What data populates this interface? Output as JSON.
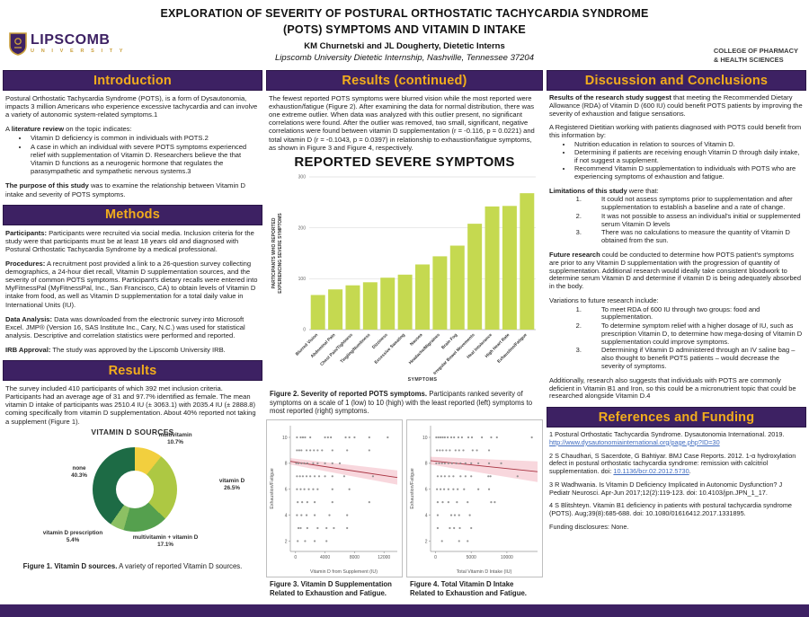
{
  "poster": {
    "title_line1": "EXPLORATION OF SEVERITY OF POSTURAL ORTHOSTATIC TACHYCARDIA SYNDROME",
    "title_line2": "(POTS) SYMPTOMS AND VITAMIN D INTAKE",
    "authors": "KM Churnetski and JL Dougherty, Dietetic Interns",
    "affiliation": "Lipscomb University Dietetic Internship, Nashville, Tennessee 37204",
    "college_line1": "COLLEGE OF PHARMACY",
    "college_line2": "& HEALTH SCIENCES",
    "logo_name": "LIPSCOMB",
    "logo_sub": "U N I V E R S I T Y"
  },
  "colors": {
    "purple": "#3d2163",
    "gold": "#f2ad1c",
    "bar_green": "#c5d950",
    "link_blue": "#3f6bbf",
    "trend_red": "#a83240"
  },
  "sections": {
    "introduction": {
      "title": "Introduction",
      "p1": "Postural Orthostatic Tachycardia Syndrome (POTS), is a form of Dysautonomia, impacts 3 million Americans who experience excessive tachycardia and can involve a variety of autonomic system-related symptoms.1",
      "lit_pre": "A ",
      "lit_bold": "literature review",
      "lit_post": " on the topic indicates:",
      "bullets": [
        "Vitamin D deficiency is common in individuals with POTS.2",
        "A case in which an individual with severe POTS symptoms experienced relief with supplementation of Vitamin D. Researchers believe the that Vitamin D functions as a neurogenic hormone that regulates the parasympathetic and sympathetic nervous systems.3"
      ],
      "purpose_bold": "The purpose of this study",
      "purpose_rest": " was to examine the relationship between Vitamin D intake and severity of POTS symptoms."
    },
    "methods": {
      "title": "Methods",
      "p1_bold": "Participants:",
      "p1_text": " Participants were recruited via social media. Inclusion criteria for the study were that participants must be at least 18 years old and diagnosed with Postural Orthostatic Tachycardia Syndrome by a medical professional.",
      "p2_bold": "Procedures:",
      "p2_text": " A recruitment post provided a link to a 26-question survey collecting demographics, a 24-hour diet recall, Vitamin D supplementation sources, and the severity of common POTS symptoms. Participant's dietary recalls were entered into MyFitnessPal (MyFitnessPal, Inc., San Francisco, CA) to obtain levels of Vitamin D intake from food, as well as Vitamin D supplementation for a total daily value in International Units (IU).",
      "p3_bold": "Data Analysis:",
      "p3_text": " Data was downloaded from the electronic survey into Microsoft Excel. JMP® (Version 16, SAS Institute Inc., Cary, N.C.) was used for statistical analysis. Descriptive and correlation statistics were performed and reported.",
      "p4_bold": "IRB Approval:",
      "p4_text": " The study was approved by the Lipscomb University IRB."
    },
    "results": {
      "title": "Results",
      "p1": "The survey included 410 participants of which 392 met inclusion criteria. Participants had an average age of 31 and 97.7% identified as female. The mean vitamin D intake of participants was 2510.4 IU (± 3063.1) with 2035.4 IU (± 2888.8) coming specifically from vitamin D supplementation. About 40% reported not taking a supplement (Figure 1).",
      "fig1_bold": "Figure 1. Vitamin D sources.",
      "fig1_rest": " A variety of reported Vitamin D sources."
    },
    "results_cont": {
      "title": "Results (continued)",
      "p1": "The fewest reported POTS symptoms were blurred vision while the most reported were exhaustion/fatigue (Figure 2). After examining the data for normal distribution, there was one extreme outlier. When data was analyzed with this outlier present, no significant correlations were found. After the outlier was removed, two small, significant, negative correlations were found between vitamin D supplementation (r = -0.116, p = 0.0221) and total vitamin D (r = -0.1043, p = 0.0397) in relationship to exhaustion/fatigue symptoms, as shown in Figure 3 and Figure 4, respectively.",
      "fig2_bold": "Figure 2. Severity of reported POTS symptoms.",
      "fig2_rest": " Participants ranked severity of symptoms on a scale of 1 (low) to 10 (high) with the least reported (left) symptoms to most reported (right) symptoms.",
      "fig3_caption": "Figure 3. Vitamin D Supplementation Related to Exhaustion and Fatigue.",
      "fig4_caption": "Figure 4. Total Vitamin D Intake Related to Exhaustion and Fatigue."
    },
    "discussion": {
      "title": "Discussion and Conclusions",
      "p1_bold": "Results of the research study suggest",
      "p1_text": " that meeting the Recommended Dietary Allowance (RDA) of Vitamin D (600 IU) could benefit POTS patients by improving the severity of exhaustion and fatigue sensations.",
      "p2_intro": "A Registered Dietitian working with patients diagnosed with POTS could benefit from this information by:",
      "p2_bullets": [
        "Nutrition education in relation to sources of Vitamin D.",
        "Determining if patients are receiving enough Vitamin D through daily intake, if not suggest a supplement.",
        "Recommend Vitamin D supplementation to individuals with POTS who are experiencing symptoms of exhaustion and fatigue."
      ],
      "lim_bold": "Limitations of this study",
      "lim_rest": " were that:",
      "lim_items": [
        "It could not assess symptoms prior to supplementation and after supplementation to establish a baseline and a rate of change.",
        "It was not possible to assess an individual's initial or supplemented serum Vitamin D levels",
        "There was no calculations to measure the quantity of Vitamin D obtained from the sun."
      ],
      "fut_bold": "Future research",
      "fut_rest": " could be conducted to determine how POTS patient's symptoms are prior to any Vitamin D supplementation with the progression of quantity of supplementation. Additional research would ideally take consistent bloodwork to determine serum Vitamin D and determine if vitamin D is being adequately absorbed in the body.",
      "var_intro": "Variations to future research include:",
      "var_items": [
        "To meet RDA of 600 IU through two groups: food and supplementation.",
        "To determine symptom relief with a higher dosage of IU, such as prescription Vitamin D, to determine how mega-dosing of Vitamin D supplementation could improve symptoms.",
        "Determining if Vitamin D administered through an IV saline bag – also thought to benefit POTS patients –  would decrease the severity of symptoms."
      ],
      "p_last": "Additionally, research also suggests that individuals with POTS are commonly deficient in Vitamin B1 and Iron, so this could be a micronutrient topic that could be researched alongside Vitamin D.4"
    },
    "references": {
      "title": "References and Funding",
      "r1_pre": "1 Postural Orthostatic Tachycardia Syndrome. Dysautonomia International. 2019.  ",
      "r1_link": "http://www.dysautonomiainternational.org/page.php?ID=30",
      "r1_post": "",
      "r2_pre": "2 S Chaudhari, S Sacerdote, G Bahtiyar. BMJ Case Reports. 2012. 1-α hydroxylation defect in postural orthostatic tachycardia syndrome: remission with calcitriol supplementation. doi: ",
      "r2_link": "10.1136/bcr.02.2012.5730",
      "r2_post": ".",
      "r3_text": "3 R Wadhwania. Is Vitamin D Deficiency Implicated in Autonomic Dysfunction? J Pediatr Neurosci. Apr-Jun 2017;12(2):119-123. doi: 10.4103/jpn.JPN_1_17.",
      "r4_text": "4 S Blitshteyn. Vitamin B1 deficiency in patients with postural tachycardia syndrome (POTS). Aug;39(8):685-688. doi: 10.1080/01616412.2017.1331895.",
      "funding": "Funding disclosures: None."
    }
  },
  "chart_data": [
    {
      "type": "pie",
      "title": "VITAMIN D SOURCES",
      "slices": [
        {
          "label": "multivitamin",
          "pct": 10.7,
          "pct_label": "10.7%",
          "color": "#f2cf3e"
        },
        {
          "label": "vitamin D",
          "pct": 26.5,
          "pct_label": "26.5%",
          "color": "#adc843"
        },
        {
          "label": "multivitamin + vitamin D",
          "pct": 17.1,
          "pct_label": "17.1%",
          "color": "#55a04e"
        },
        {
          "label": "vitamin D prescription",
          "pct": 5.4,
          "pct_label": "5.4%",
          "color": "#8cc063"
        },
        {
          "label": "none",
          "pct": 40.3,
          "pct_label": "40.3%",
          "color": "#1d6b45"
        }
      ]
    },
    {
      "type": "bar",
      "title": "REPORTED SEVERE SYMPTOMS",
      "xlabel": "SYMPTOMS",
      "ylabel_line1": "PARTICIPANTS WHO REPORTED",
      "ylabel_line2": "EXPERIENCING SEVERE SYMPTOMS",
      "ylim": [
        0,
        300
      ],
      "yticks": [
        0,
        100,
        200,
        300
      ],
      "bar_color": "#c5d950",
      "categories": [
        "Blurred Vision",
        "Abdominal Pain",
        "Chest Pain/Tightness",
        "Tingling/Numbness",
        "Dizziness",
        "Excessive Sweating",
        "Nausea",
        "Headache/Migraines",
        "Brain Fog",
        "Irregular Bowel Movements",
        "Heat Intolerance",
        "High Heart Rate",
        "Exhaustion/Fatigue"
      ],
      "values": [
        68,
        79,
        87,
        93,
        102,
        108,
        128,
        144,
        165,
        208,
        242,
        243,
        268
      ]
    },
    {
      "type": "scatter",
      "xlabel": "Vitamin D from Supplement (IU)",
      "ylabel": "Exhaustion/Fatigue",
      "xlim": [
        -700,
        13800
      ],
      "xticks": [
        0,
        4000,
        8000,
        12000
      ],
      "ylim": [
        1.2,
        10.9
      ],
      "yticks": [
        2,
        4,
        6,
        8,
        10
      ],
      "trend": {
        "x": [
          -700,
          13800
        ],
        "y": [
          8.15,
          6.9
        ],
        "band": [
          0.25,
          0.55
        ]
      },
      "points": [
        [
          200,
          10
        ],
        [
          700,
          10
        ],
        [
          1000,
          10
        ],
        [
          1300,
          10
        ],
        [
          2000,
          10
        ],
        [
          4000,
          10
        ],
        [
          4400,
          10
        ],
        [
          4800,
          10
        ],
        [
          6800,
          10
        ],
        [
          7300,
          10
        ],
        [
          8000,
          10
        ],
        [
          10000,
          10
        ],
        [
          12500,
          10
        ],
        [
          200,
          9
        ],
        [
          500,
          9
        ],
        [
          800,
          9
        ],
        [
          1500,
          9
        ],
        [
          2000,
          9
        ],
        [
          2500,
          9
        ],
        [
          3000,
          9
        ],
        [
          3600,
          9
        ],
        [
          5000,
          9
        ],
        [
          7000,
          9
        ],
        [
          10000,
          9
        ],
        [
          100,
          8
        ],
        [
          400,
          8
        ],
        [
          800,
          8
        ],
        [
          1200,
          8
        ],
        [
          1600,
          8
        ],
        [
          2400,
          8
        ],
        [
          3000,
          8
        ],
        [
          4000,
          8
        ],
        [
          5000,
          8
        ],
        [
          6000,
          8
        ],
        [
          200,
          7
        ],
        [
          600,
          7
        ],
        [
          1000,
          7
        ],
        [
          1500,
          7
        ],
        [
          2000,
          7
        ],
        [
          2600,
          7
        ],
        [
          3200,
          7
        ],
        [
          4000,
          7
        ],
        [
          5000,
          7
        ],
        [
          6600,
          7
        ],
        [
          10500,
          7
        ],
        [
          200,
          6
        ],
        [
          700,
          6
        ],
        [
          1200,
          6
        ],
        [
          1800,
          6
        ],
        [
          2400,
          6
        ],
        [
          3000,
          6
        ],
        [
          5000,
          6
        ],
        [
          7300,
          6
        ],
        [
          300,
          5
        ],
        [
          900,
          5
        ],
        [
          1600,
          5
        ],
        [
          2600,
          5
        ],
        [
          5000,
          5
        ],
        [
          10000,
          5
        ],
        [
          200,
          4
        ],
        [
          800,
          4
        ],
        [
          1500,
          4
        ],
        [
          2600,
          4
        ],
        [
          4600,
          4
        ],
        [
          7000,
          4
        ],
        [
          400,
          3
        ],
        [
          700,
          3
        ],
        [
          1600,
          3
        ],
        [
          3000,
          3
        ],
        [
          4200,
          3
        ],
        [
          5200,
          3
        ],
        [
          7000,
          3
        ],
        [
          300,
          2
        ],
        [
          1300,
          2
        ],
        [
          2600,
          2
        ],
        [
          4200,
          2
        ]
      ]
    },
    {
      "type": "scatter",
      "xlabel": "Total Vitamin D Intake (IU)",
      "ylabel": "Exhaustion/Fatigue",
      "xlim": [
        -700,
        14300
      ],
      "xticks": [
        0,
        5000,
        10000
      ],
      "ylim": [
        1.2,
        10.9
      ],
      "yticks": [
        2,
        4,
        6,
        8,
        10
      ],
      "trend": {
        "x": [
          -700,
          14300
        ],
        "y": [
          8.2,
          7.35
        ],
        "band": [
          0.3,
          0.8
        ]
      },
      "points": [
        [
          100,
          10
        ],
        [
          400,
          10
        ],
        [
          700,
          10
        ],
        [
          1000,
          10
        ],
        [
          1300,
          10
        ],
        [
          1700,
          10
        ],
        [
          2200,
          10
        ],
        [
          2600,
          10
        ],
        [
          3200,
          10
        ],
        [
          3700,
          10
        ],
        [
          4600,
          10
        ],
        [
          5100,
          10
        ],
        [
          6500,
          10
        ],
        [
          7800,
          10
        ],
        [
          8600,
          10
        ],
        [
          13500,
          10
        ],
        [
          200,
          9
        ],
        [
          600,
          9
        ],
        [
          1000,
          9
        ],
        [
          1500,
          9
        ],
        [
          2000,
          9
        ],
        [
          2800,
          9
        ],
        [
          3300,
          9
        ],
        [
          3900,
          9
        ],
        [
          5200,
          9
        ],
        [
          5800,
          9
        ],
        [
          7500,
          9
        ],
        [
          100,
          8
        ],
        [
          500,
          8
        ],
        [
          900,
          8
        ],
        [
          1300,
          8
        ],
        [
          1800,
          8
        ],
        [
          2300,
          8
        ],
        [
          2900,
          8
        ],
        [
          3500,
          8
        ],
        [
          4200,
          8
        ],
        [
          5000,
          8
        ],
        [
          6000,
          8
        ],
        [
          7500,
          8
        ],
        [
          9200,
          8
        ],
        [
          300,
          7
        ],
        [
          800,
          7
        ],
        [
          1300,
          7
        ],
        [
          1900,
          7
        ],
        [
          2500,
          7
        ],
        [
          3500,
          7
        ],
        [
          4200,
          7
        ],
        [
          5000,
          7
        ],
        [
          7400,
          7
        ],
        [
          7700,
          7
        ],
        [
          11500,
          7
        ],
        [
          200,
          6
        ],
        [
          700,
          6
        ],
        [
          1200,
          6
        ],
        [
          1800,
          6
        ],
        [
          2500,
          6
        ],
        [
          3100,
          6
        ],
        [
          4000,
          6
        ],
        [
          6000,
          6
        ],
        [
          7500,
          6
        ],
        [
          300,
          5
        ],
        [
          1000,
          5
        ],
        [
          1800,
          5
        ],
        [
          3000,
          5
        ],
        [
          4500,
          5
        ],
        [
          7800,
          5
        ],
        [
          8300,
          5
        ],
        [
          300,
          4
        ],
        [
          2200,
          4
        ],
        [
          2700,
          4
        ],
        [
          3300,
          4
        ],
        [
          4800,
          4
        ],
        [
          300,
          3
        ],
        [
          2000,
          3
        ],
        [
          2600,
          3
        ],
        [
          3400,
          3
        ],
        [
          5000,
          3
        ],
        [
          900,
          2
        ],
        [
          3300,
          2
        ],
        [
          4500,
          2
        ]
      ]
    }
  ]
}
